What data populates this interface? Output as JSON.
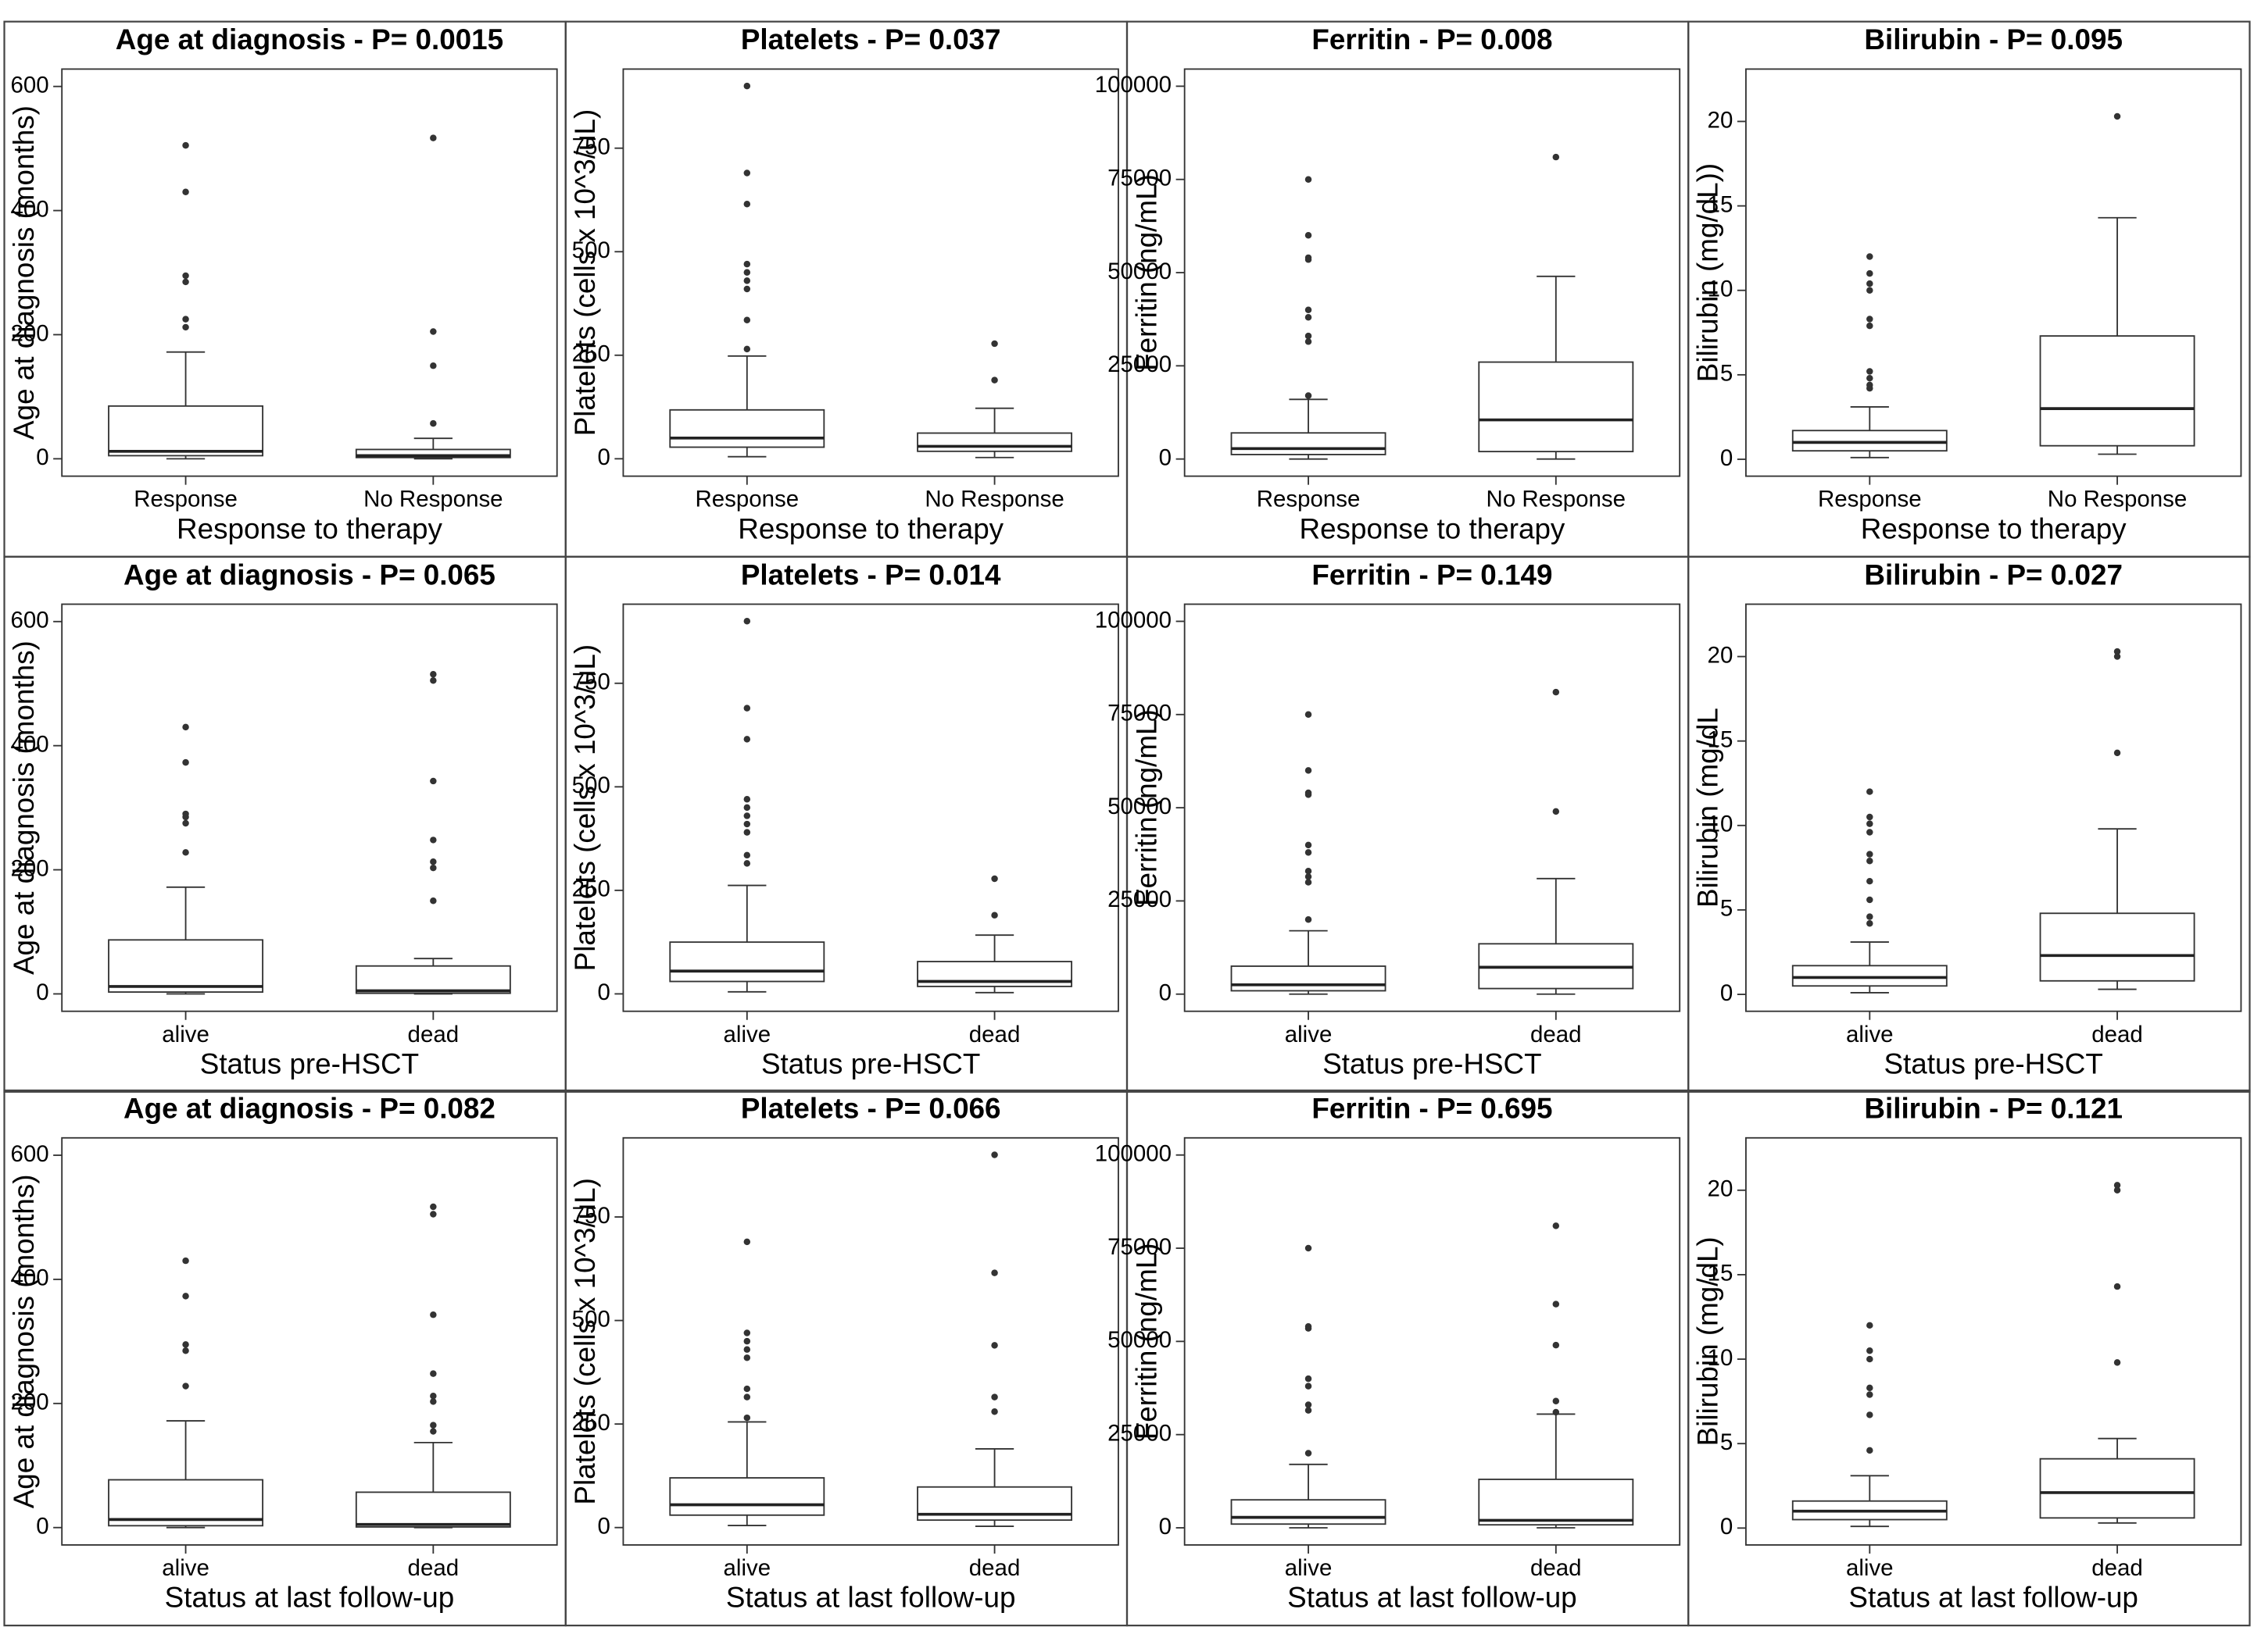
{
  "chart_data": [
    {
      "type": "box",
      "title": "Age at diagnosis - P= 0.0015",
      "xlabel": "Response to therapy",
      "ylabel": "Age at diagnosis (months)",
      "categories": [
        "Response",
        "No Response"
      ],
      "ylim": [
        -28,
        628
      ],
      "yticks": [
        0,
        200,
        400,
        600
      ],
      "boxes": [
        {
          "min": 0,
          "q1": 5,
          "median": 12,
          "q3": 85,
          "max": 172,
          "outliers": [
            505,
            430,
            295,
            285,
            225,
            212
          ]
        },
        {
          "min": 0,
          "q1": 2,
          "median": 5,
          "q3": 15,
          "max": 33,
          "outliers": [
            517,
            205,
            150,
            57
          ]
        }
      ]
    },
    {
      "type": "box",
      "title": "Platelets - P= 0.037",
      "xlabel": "Response to therapy",
      "ylabel": "Platelets (cells x 10^3/uL)",
      "categories": [
        "Response",
        "No Response"
      ],
      "ylim": [
        -42,
        941
      ],
      "yticks": [
        0,
        250,
        500,
        750
      ],
      "boxes": [
        {
          "min": 5,
          "q1": 28,
          "median": 50,
          "q3": 118,
          "max": 248,
          "outliers": [
            900,
            690,
            615,
            470,
            450,
            430,
            410,
            335,
            265
          ]
        },
        {
          "min": 3,
          "q1": 18,
          "median": 30,
          "q3": 62,
          "max": 122,
          "outliers": [
            278,
            190
          ]
        }
      ]
    },
    {
      "type": "box",
      "title": "Ferritin - P= 0.008",
      "xlabel": "Response to therapy",
      "ylabel": "Ferritin (ng/mL)",
      "categories": [
        "Response",
        "No Response"
      ],
      "ylim": [
        -4600,
        104600
      ],
      "yticks": [
        0,
        25000,
        50000,
        75000,
        100000
      ],
      "boxes": [
        {
          "min": 0,
          "q1": 1200,
          "median": 2800,
          "q3": 7000,
          "max": 16000,
          "outliers": [
            75000,
            60000,
            54000,
            53500,
            40000,
            38000,
            33000,
            31500,
            17000
          ]
        },
        {
          "min": 0,
          "q1": 2000,
          "median": 10500,
          "q3": 26000,
          "max": 49000,
          "outliers": [
            81000
          ]
        }
      ]
    },
    {
      "type": "box",
      "title": "Bilirubin - P= 0.095",
      "xlabel": "Response to therapy",
      "ylabel": "Bilirubin (mg/dL))",
      "categories": [
        "Response",
        "No Response"
      ],
      "ylim": [
        -1,
        23.1
      ],
      "yticks": [
        0,
        5,
        10,
        15,
        20
      ],
      "boxes": [
        {
          "min": 0.1,
          "q1": 0.5,
          "median": 1,
          "q3": 1.7,
          "max": 3.1,
          "outliers": [
            12,
            11,
            10.4,
            10,
            8.3,
            7.9,
            5.2,
            4.8,
            4.4,
            4.2
          ]
        },
        {
          "min": 0.3,
          "q1": 0.8,
          "median": 3,
          "q3": 7.3,
          "max": 14.3,
          "outliers": [
            20.3
          ]
        }
      ]
    },
    {
      "type": "box",
      "title": "Age at diagnosis - P= 0.065",
      "xlabel": "Status pre-HSCT",
      "ylabel": "Age at diagnosis (months)",
      "categories": [
        "alive",
        "dead"
      ],
      "ylim": [
        -28,
        628
      ],
      "yticks": [
        0,
        200,
        400,
        600
      ],
      "boxes": [
        {
          "min": 0,
          "q1": 3,
          "median": 12,
          "q3": 87,
          "max": 172,
          "outliers": [
            430,
            373,
            290,
            285,
            275,
            228
          ]
        },
        {
          "min": 0,
          "q1": 1,
          "median": 5,
          "q3": 45,
          "max": 57,
          "outliers": [
            515,
            505,
            343,
            248,
            213,
            203,
            150
          ]
        }
      ]
    },
    {
      "type": "box",
      "title": "Platelets - P= 0.014",
      "xlabel": "Status pre-HSCT",
      "ylabel": "Platelets (cells x 10^3/uL)",
      "categories": [
        "alive",
        "dead"
      ],
      "ylim": [
        -42,
        941
      ],
      "yticks": [
        0,
        250,
        500,
        750
      ],
      "boxes": [
        {
          "min": 5,
          "q1": 30,
          "median": 55,
          "q3": 125,
          "max": 262,
          "outliers": [
            900,
            690,
            615,
            470,
            450,
            430,
            410,
            390,
            335,
            315
          ]
        },
        {
          "min": 3,
          "q1": 18,
          "median": 30,
          "q3": 78,
          "max": 142,
          "outliers": [
            278,
            190
          ]
        }
      ]
    },
    {
      "type": "box",
      "title": "Ferritin - P= 0.149",
      "xlabel": "Status pre-HSCT",
      "ylabel": "Ferritin (ng/mL)",
      "categories": [
        "alive",
        "dead"
      ],
      "ylim": [
        -4600,
        104600
      ],
      "yticks": [
        0,
        25000,
        50000,
        75000,
        100000
      ],
      "boxes": [
        {
          "min": 0,
          "q1": 900,
          "median": 2500,
          "q3": 7500,
          "max": 17000,
          "outliers": [
            75000,
            60000,
            54000,
            53500,
            40000,
            38000,
            33000,
            31500,
            30000,
            20000
          ]
        },
        {
          "min": 0,
          "q1": 1500,
          "median": 7200,
          "q3": 13500,
          "max": 31000,
          "outliers": [
            81000,
            49000
          ]
        }
      ]
    },
    {
      "type": "box",
      "title": "Bilirubin - P= 0.027",
      "xlabel": "Status pre-HSCT",
      "ylabel": "Bilirubin (mg/dL",
      "categories": [
        "alive",
        "dead"
      ],
      "ylim": [
        -1,
        23.1
      ],
      "yticks": [
        0,
        5,
        10,
        15,
        20
      ],
      "boxes": [
        {
          "min": 0.1,
          "q1": 0.5,
          "median": 1,
          "q3": 1.7,
          "max": 3.1,
          "outliers": [
            12,
            10.5,
            10.1,
            9.6,
            8.3,
            7.9,
            6.7,
            5.6,
            4.6,
            4.2
          ]
        },
        {
          "min": 0.3,
          "q1": 0.8,
          "median": 2.3,
          "q3": 4.8,
          "max": 9.8,
          "outliers": [
            20.3,
            20,
            14.3
          ]
        }
      ]
    },
    {
      "type": "box",
      "title": "Age at diagnosis - P= 0.082",
      "xlabel": "Status at last follow-up",
      "ylabel": "Age at diagnosis (months)",
      "categories": [
        "alive",
        "dead"
      ],
      "ylim": [
        -28,
        628
      ],
      "yticks": [
        0,
        200,
        400,
        600
      ],
      "boxes": [
        {
          "min": 0,
          "q1": 3,
          "median": 13,
          "q3": 77,
          "max": 172,
          "outliers": [
            430,
            373,
            295,
            285,
            228
          ]
        },
        {
          "min": 0,
          "q1": 1,
          "median": 5,
          "q3": 57,
          "max": 137,
          "outliers": [
            517,
            505,
            343,
            248,
            212,
            203,
            165,
            155
          ]
        }
      ]
    },
    {
      "type": "box",
      "title": "Platelets - P= 0.066",
      "xlabel": "Status at last follow-up",
      "ylabel": "Platelets (cells x 10^3/uL)",
      "categories": [
        "alive",
        "dead"
      ],
      "ylim": [
        -42,
        941
      ],
      "yticks": [
        0,
        250,
        500,
        750
      ],
      "boxes": [
        {
          "min": 5,
          "q1": 30,
          "median": 55,
          "q3": 120,
          "max": 255,
          "outliers": [
            690,
            470,
            450,
            430,
            410,
            335,
            315,
            265
          ]
        },
        {
          "min": 3,
          "q1": 18,
          "median": 32,
          "q3": 98,
          "max": 190,
          "outliers": [
            900,
            615,
            440,
            315,
            280
          ]
        }
      ]
    },
    {
      "type": "box",
      "title": "Ferritin - P= 0.695",
      "xlabel": "Status at last follow-up",
      "ylabel": "Ferritin (ng/mL)",
      "categories": [
        "alive",
        "dead"
      ],
      "ylim": [
        -4600,
        104600
      ],
      "yticks": [
        0,
        25000,
        50000,
        75000,
        100000
      ],
      "boxes": [
        {
          "min": 0,
          "q1": 1000,
          "median": 2800,
          "q3": 7500,
          "max": 17000,
          "outliers": [
            75000,
            54000,
            53500,
            40000,
            38000,
            33000,
            31500,
            20000
          ]
        },
        {
          "min": 0,
          "q1": 800,
          "median": 2000,
          "q3": 13000,
          "max": 30500,
          "outliers": [
            81000,
            60000,
            49000,
            34000,
            31000
          ]
        }
      ]
    },
    {
      "type": "box",
      "title": "Bilirubin - P= 0.121",
      "xlabel": "Status at last follow-up",
      "ylabel": "Bilirubin (mg/dL)",
      "categories": [
        "alive",
        "dead"
      ],
      "ylim": [
        -1,
        23.1
      ],
      "yticks": [
        0,
        5,
        10,
        15,
        20
      ],
      "boxes": [
        {
          "min": 0.1,
          "q1": 0.5,
          "median": 1,
          "q3": 1.6,
          "max": 3.1,
          "outliers": [
            12,
            10.5,
            10,
            8.3,
            7.9,
            6.7,
            4.6
          ]
        },
        {
          "min": 0.3,
          "q1": 0.6,
          "median": 2.1,
          "q3": 4.1,
          "max": 5.3,
          "outliers": [
            20.3,
            20,
            14.3,
            9.8
          ]
        }
      ]
    }
  ]
}
